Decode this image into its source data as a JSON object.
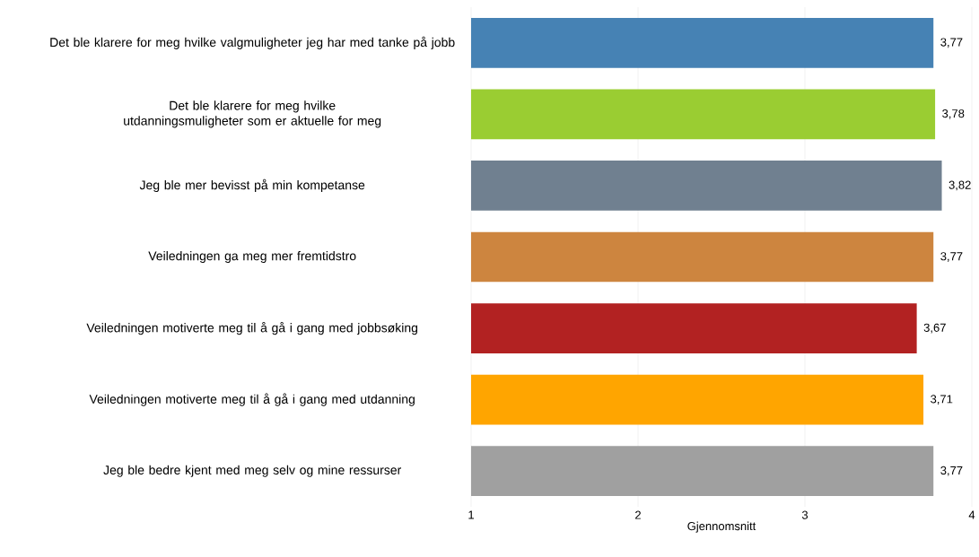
{
  "chart_data": {
    "type": "bar",
    "orientation": "horizontal",
    "xlabel": "Gjennomsnitt",
    "categories": [
      "Det ble klarere for meg hvilke valgmuligheter jeg har med tanke på jobb",
      "Det ble klarere for meg hvilke utdanningsmuligheter som er aktuelle for meg",
      "Jeg ble mer bevisst på min kompetanse",
      "Veiledningen ga meg mer fremtidstro",
      "Veiledningen motiverte meg til å gå i gang med jobbsøking",
      "Veiledningen motiverte meg til å gå i gang med utdanning",
      "Jeg ble bedre kjent med meg selv og mine ressurser"
    ],
    "values": [
      3.77,
      3.78,
      3.82,
      3.77,
      3.67,
      3.71,
      3.77
    ],
    "value_labels": [
      "3,77",
      "3,78",
      "3,82",
      "3,77",
      "3,67",
      "3,71",
      "3,77"
    ],
    "colors": [
      "#4682b4",
      "#9acd32",
      "#708090",
      "#cd853f",
      "#b22222",
      "#ffa500",
      "#a0a0a0"
    ],
    "xlim": [
      1,
      4
    ],
    "xticks": [
      1,
      2,
      3,
      4
    ],
    "grid": "x"
  }
}
